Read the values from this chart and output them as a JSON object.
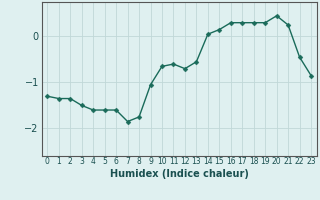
{
  "x": [
    0,
    1,
    2,
    3,
    4,
    5,
    6,
    7,
    8,
    9,
    10,
    11,
    12,
    13,
    14,
    15,
    16,
    17,
    18,
    19,
    20,
    21,
    22,
    23
  ],
  "y": [
    -1.3,
    -1.35,
    -1.35,
    -1.5,
    -1.6,
    -1.6,
    -1.6,
    -1.85,
    -1.75,
    -1.05,
    -0.65,
    -0.6,
    -0.7,
    -0.55,
    0.05,
    0.15,
    0.3,
    0.3,
    0.3,
    0.3,
    0.45,
    0.25,
    -0.45,
    -0.85
  ],
  "line_color": "#1a6b5a",
  "marker": "D",
  "marker_size": 2.5,
  "background_color": "#dff0f0",
  "grid_color": "#c0d8d8",
  "xlabel": "Humidex (Indice chaleur)",
  "xlim": [
    -0.5,
    23.5
  ],
  "ylim": [
    -2.6,
    0.75
  ],
  "yticks": [
    -2,
    -1,
    0
  ],
  "xticks": [
    0,
    1,
    2,
    3,
    4,
    5,
    6,
    7,
    8,
    9,
    10,
    11,
    12,
    13,
    14,
    15,
    16,
    17,
    18,
    19,
    20,
    21,
    22,
    23
  ],
  "xlabel_fontsize": 7,
  "ytick_fontsize": 7,
  "xtick_fontsize": 5.5,
  "linewidth": 1.0,
  "spine_color": "#555555"
}
